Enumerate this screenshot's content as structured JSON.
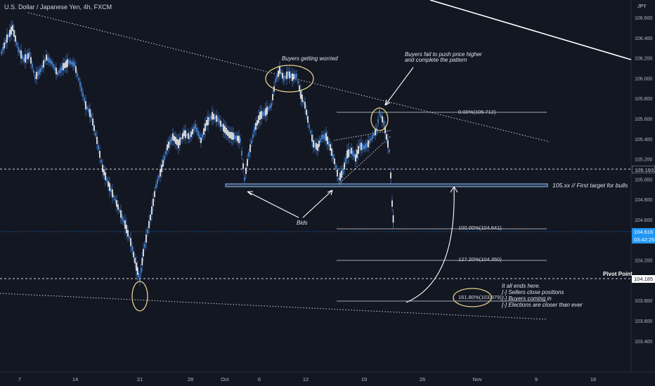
{
  "chart_title": "U.S. Dollar / Japanese Yen, 4h, FXCM",
  "currency_label": "JPY",
  "price_axis_ticks": [
    "106.600",
    "106.400",
    "106.200",
    "106.000",
    "105.800",
    "105.600",
    "105.400",
    "105.200",
    "105.000",
    "104.800",
    "104.600",
    "104.400",
    "104.200",
    "104.000",
    "103.800",
    "103.600",
    "103.400"
  ],
  "time_axis_ticks": [
    "7",
    "14",
    "21",
    "28",
    "Oct",
    "6",
    "12",
    "19",
    "26",
    "Nov",
    "9",
    "16"
  ],
  "price_tags": {
    "level_105193": "105.193",
    "current_price": "104.616",
    "countdown": "03:42:25",
    "pivot_price": "104.185"
  },
  "annotations": {
    "buyers_worried": "Buyers getting worried",
    "buyers_fail_line1": "Buyers fail to push price higher",
    "buyers_fail_line2": "and complete the pattern",
    "bids": "Bids",
    "first_target": "105.xx // First target for bulls",
    "pivot_point": "Pivot Point",
    "ends_line1": "It all ends here.",
    "ends_line2": "[-] Sellers close positions",
    "ends_line3": "[-] Buyers coming in",
    "ends_line4": "[-] Elections are closer than ever"
  },
  "fib_levels": [
    {
      "label": "0.00%(105.712)"
    },
    {
      "label": "100.00%(104.641)"
    },
    {
      "label": "127.20%(104.350)"
    },
    {
      "label": "161.80%(103.979)"
    }
  ],
  "colors": {
    "background": "#131722",
    "candle": "#4c8ee8",
    "ellipse": "#e4d08a",
    "text": "#d1d4dc",
    "current_price": "#2196f3"
  }
}
